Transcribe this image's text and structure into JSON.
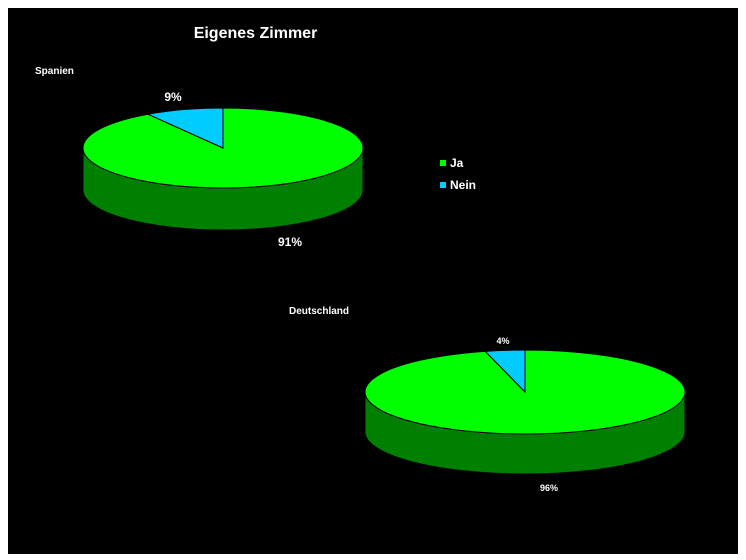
{
  "chart_data": {
    "type": "pie",
    "title": "Eigenes Zimmer",
    "legend": [
      "Ja",
      "Nein"
    ],
    "legend_position": "right",
    "colors": {
      "Ja": "#00ff00",
      "Nein": "#00ccff",
      "Ja_side": "#008000",
      "Nein_side": "#009999"
    },
    "charts": [
      {
        "name": "Spanien",
        "categories": [
          "Ja",
          "Nein"
        ],
        "values": [
          91,
          9
        ],
        "labels": [
          "91%",
          "9%"
        ]
      },
      {
        "name": "Deutschland",
        "categories": [
          "Ja",
          "Nein"
        ],
        "values": [
          96,
          4
        ],
        "labels": [
          "96%",
          "4%"
        ]
      }
    ]
  }
}
